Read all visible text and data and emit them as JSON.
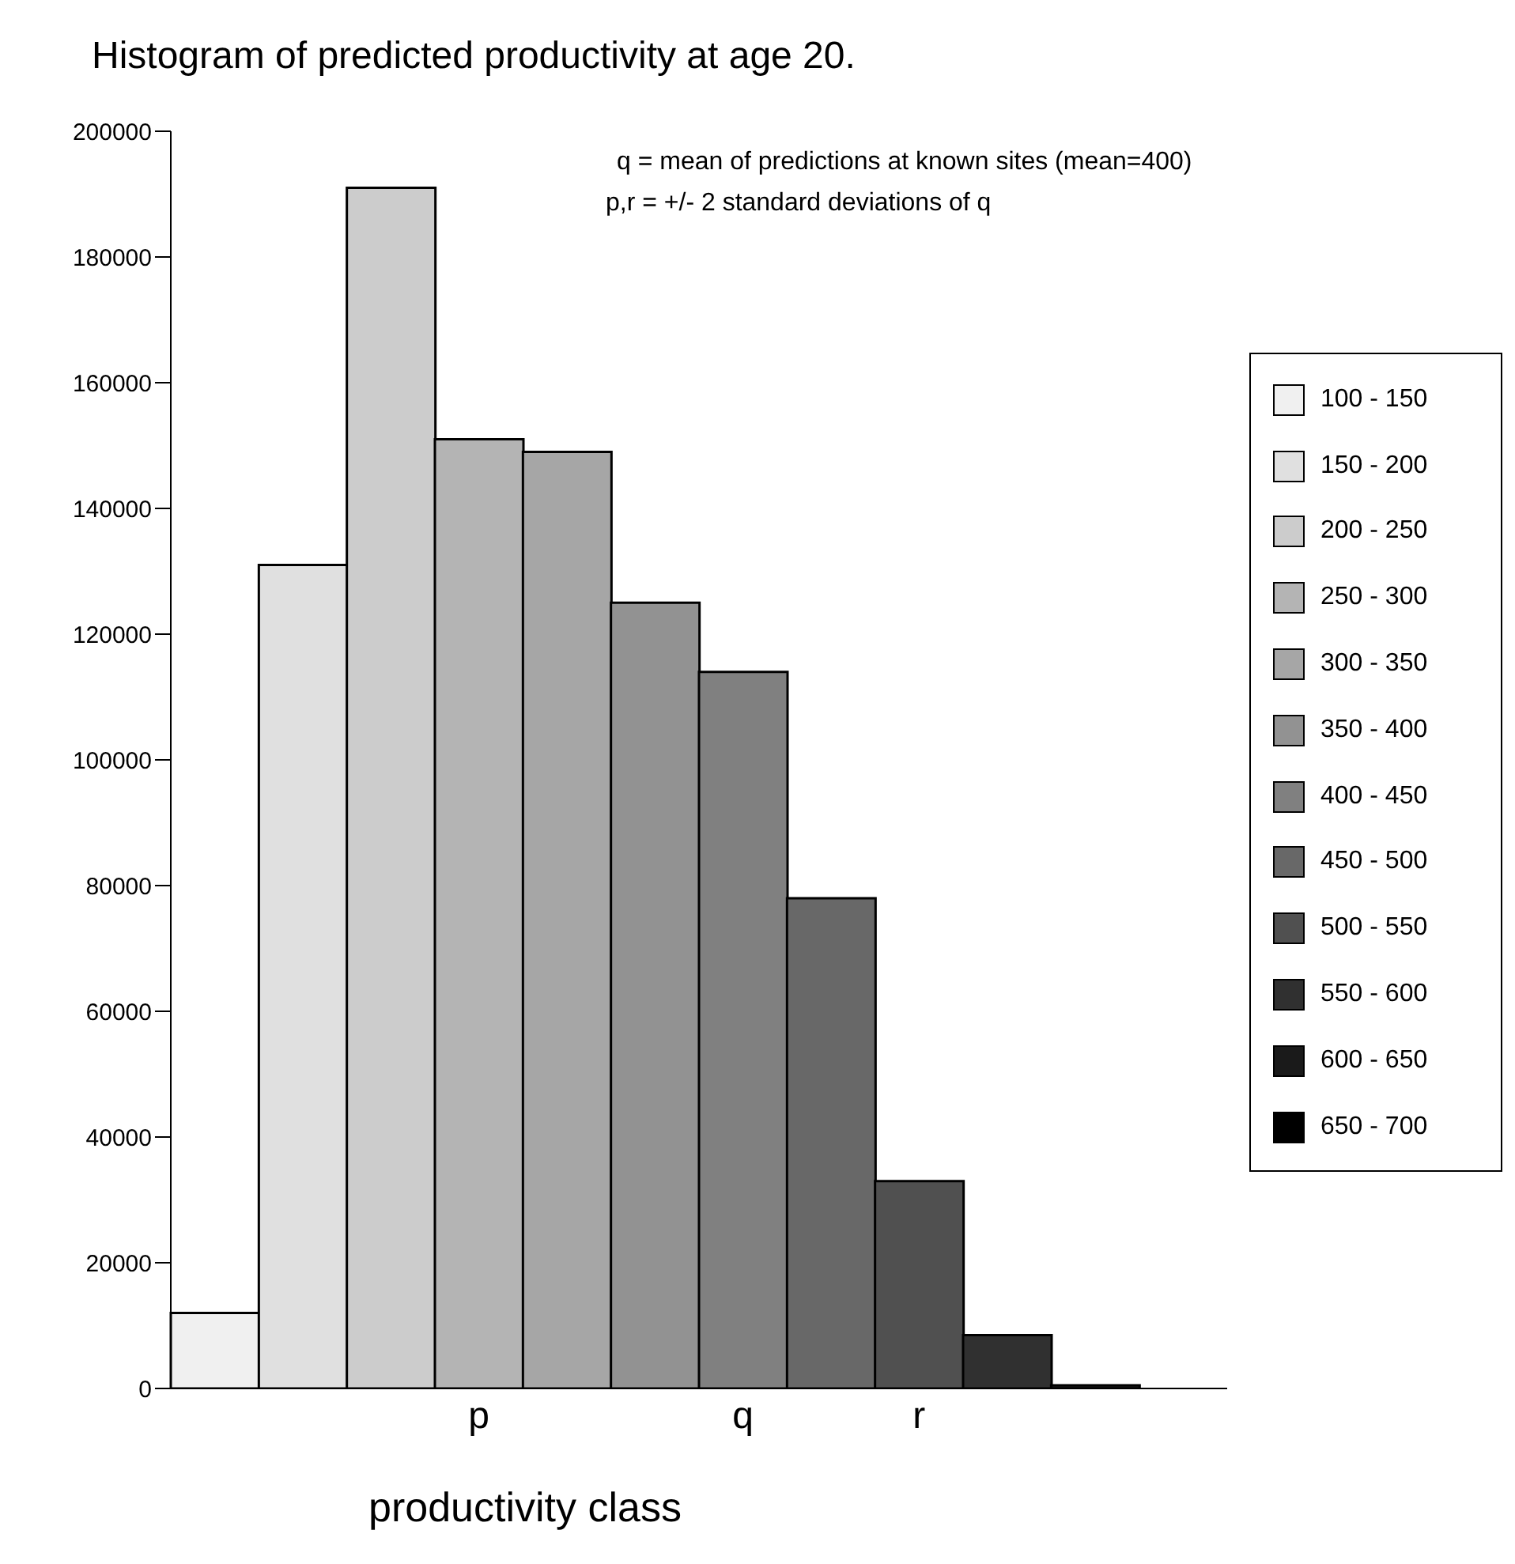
{
  "chart_data": {
    "type": "bar",
    "stacked": true,
    "title": "Histogram of predicted productivity at age 20.",
    "xlabel": "productivity class",
    "annotations": [
      "q = mean of predictions at known sites (mean=400)",
      "p,r = +/- 2 standard deviations of q"
    ],
    "categories": [
      null,
      null,
      null,
      "p",
      null,
      null,
      "q",
      null,
      "r",
      null,
      null,
      null
    ],
    "series": [
      {
        "name": "100 - 150",
        "color": "#f0f0f0",
        "values": [
          12000,
          null,
          null,
          null,
          null,
          null,
          null,
          null,
          null,
          null,
          null,
          null
        ]
      },
      {
        "name": "150 - 200",
        "color": "#e0e0e0",
        "values": [
          null,
          131000,
          null,
          null,
          null,
          null,
          null,
          null,
          null,
          null,
          null,
          null
        ]
      },
      {
        "name": "200 - 250",
        "color": "#cccccc",
        "values": [
          null,
          null,
          191000,
          null,
          null,
          null,
          null,
          null,
          null,
          null,
          null,
          null
        ]
      },
      {
        "name": "250 - 300",
        "color": "#b4b4b4",
        "values": [
          null,
          null,
          null,
          151000,
          null,
          null,
          null,
          null,
          null,
          null,
          null,
          null
        ]
      },
      {
        "name": "300 - 350",
        "color": "#a6a6a6",
        "values": [
          null,
          null,
          null,
          null,
          149000,
          null,
          null,
          null,
          null,
          null,
          null,
          null
        ]
      },
      {
        "name": "350 - 400",
        "color": "#929292",
        "values": [
          null,
          null,
          null,
          null,
          null,
          125000,
          null,
          null,
          null,
          null,
          null,
          null
        ]
      },
      {
        "name": "400 - 450",
        "color": "#808080",
        "values": [
          null,
          null,
          null,
          null,
          null,
          null,
          114000,
          null,
          null,
          null,
          null,
          null
        ]
      },
      {
        "name": "450 - 500",
        "color": "#686868",
        "values": [
          null,
          null,
          null,
          null,
          null,
          null,
          null,
          78000,
          null,
          null,
          null,
          null
        ]
      },
      {
        "name": "500 - 550",
        "color": "#505050",
        "values": [
          null,
          null,
          null,
          null,
          null,
          null,
          null,
          null,
          33000,
          null,
          null,
          null
        ]
      },
      {
        "name": "550 - 600",
        "color": "#303030",
        "values": [
          null,
          null,
          null,
          null,
          null,
          null,
          null,
          null,
          null,
          8500,
          null,
          null
        ]
      },
      {
        "name": "600 - 650",
        "color": "#1a1a1a",
        "values": [
          null,
          null,
          null,
          null,
          null,
          null,
          null,
          null,
          null,
          null,
          500,
          null
        ]
      },
      {
        "name": "650 - 700",
        "color": "#000000",
        "values": [
          null,
          null,
          null,
          null,
          null,
          null,
          null,
          null,
          null,
          null,
          null,
          null
        ]
      }
    ],
    "ylim": [
      0,
      200000
    ],
    "yticks": [
      0,
      20000,
      40000,
      60000,
      80000,
      100000,
      120000,
      140000,
      160000,
      180000,
      200000
    ],
    "grid": false,
    "legend": "right"
  }
}
